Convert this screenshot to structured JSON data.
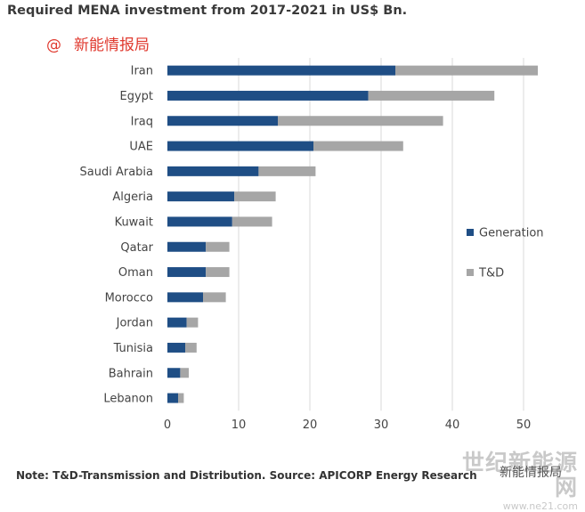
{
  "header": {
    "title": "Required MENA investment from 2017-2021 in US$ Bn.",
    "watermark_at": "@",
    "watermark_brand": "新能情报局"
  },
  "footer": {
    "note": "Note: T&D-Transmission and Distribution. Source: APICORP Energy Research",
    "watermark_big": "世纪新能源网",
    "watermark_url": "www.ne21.com",
    "watermark_overlay": "新能情报局"
  },
  "colors": {
    "generation": "#1f4e85",
    "td": "#a6a6a6",
    "grid": "#d9d9d9"
  },
  "chart_data": {
    "type": "bar",
    "orientation": "horizontal",
    "stacked": true,
    "categories": [
      "Iran",
      "Egypt",
      "Iraq",
      "UAE",
      "Saudi Arabia",
      "Algeria",
      "Kuwait",
      "Qatar",
      "Oman",
      "Morocco",
      "Jordan",
      "Tunisia",
      "Bahrain",
      "Lebanon"
    ],
    "series": [
      {
        "name": "Generation",
        "values": [
          32,
          28.2,
          15.5,
          20.5,
          12.8,
          9.4,
          9.1,
          5.4,
          5.4,
          5.0,
          2.7,
          2.5,
          1.8,
          1.5
        ]
      },
      {
        "name": "T&D",
        "values": [
          20,
          17.7,
          23.2,
          12.6,
          8.0,
          5.8,
          5.6,
          3.3,
          3.3,
          3.2,
          1.6,
          1.6,
          1.2,
          0.8
        ]
      }
    ],
    "xlim": [
      0,
      55
    ],
    "xticks": [
      0,
      10,
      20,
      30,
      40,
      50
    ],
    "grid": "vertical",
    "legend": "right"
  }
}
